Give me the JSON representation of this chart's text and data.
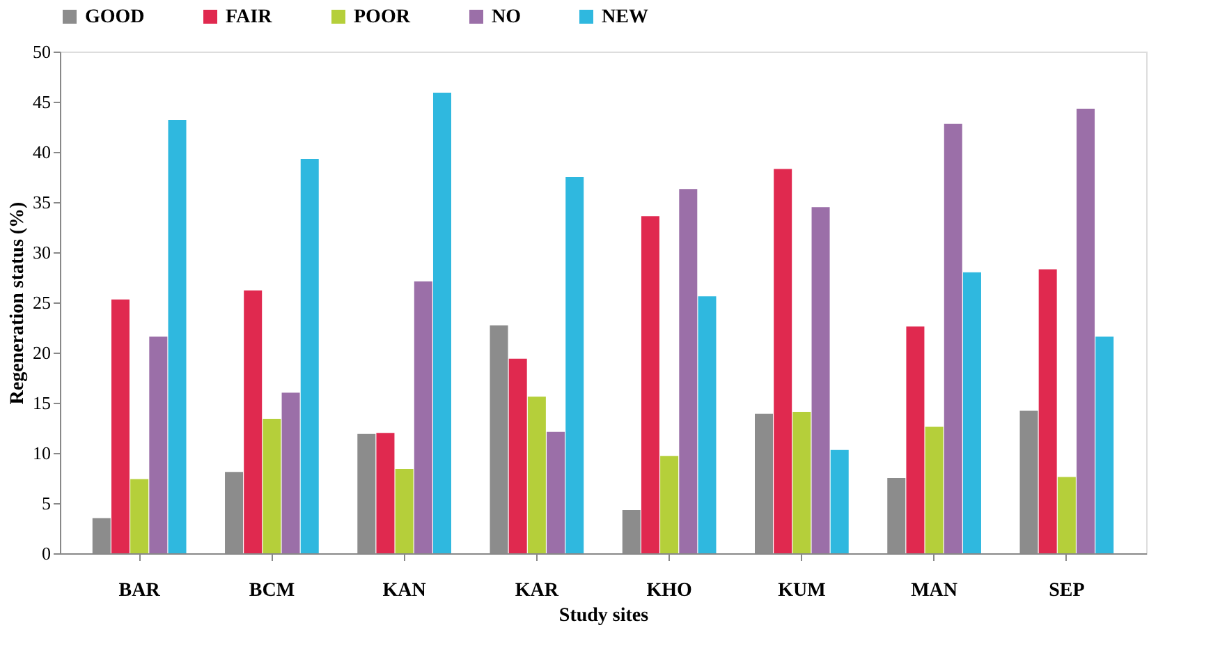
{
  "chart_data": {
    "type": "bar",
    "xlabel": "Study sites",
    "ylabel": "Regeneration status (%)",
    "categories": [
      "BAR",
      "BCM",
      "KAN",
      "KAR",
      "KHO",
      "KUM",
      "MAN",
      "SEP"
    ],
    "series": [
      {
        "name": "GOOD",
        "color": "#8c8c8c",
        "values": [
          3.5,
          8.1,
          11.9,
          22.7,
          4.3,
          13.9,
          7.5,
          14.2
        ]
      },
      {
        "name": "FAIR",
        "color": "#e0294f",
        "values": [
          25.3,
          26.2,
          12.0,
          19.4,
          33.6,
          38.3,
          22.6,
          28.3
        ]
      },
      {
        "name": "POOR",
        "color": "#b5cf3a",
        "values": [
          7.4,
          13.4,
          8.4,
          15.6,
          9.7,
          14.1,
          12.6,
          7.6
        ]
      },
      {
        "name": "NO",
        "color": "#9b6fa8",
        "values": [
          21.6,
          16.0,
          27.1,
          12.1,
          36.3,
          34.5,
          42.8,
          44.3
        ]
      },
      {
        "name": "NEW",
        "color": "#2fb8df",
        "values": [
          43.2,
          39.3,
          45.9,
          37.5,
          25.6,
          10.3,
          28.0,
          21.6
        ]
      }
    ],
    "ylim": [
      0,
      50
    ],
    "yticks": [
      0,
      5,
      10,
      15,
      20,
      25,
      30,
      35,
      40,
      45,
      50
    ],
    "grid": false,
    "legend": "top"
  }
}
